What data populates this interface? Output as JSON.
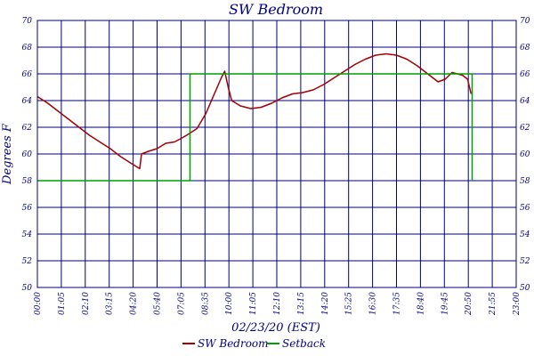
{
  "chart_data": {
    "type": "line",
    "title": "SW Bedroom",
    "xlabel": "02/23/20 (EST)",
    "ylabel": "Degrees F",
    "ylim": [
      50,
      70
    ],
    "yticks": [
      50,
      52,
      54,
      56,
      58,
      60,
      62,
      64,
      66,
      68,
      70
    ],
    "xlim": [
      "00:00",
      "23:00"
    ],
    "xticks": [
      "00:00",
      "01:05",
      "02:10",
      "03:15",
      "04:20",
      "05:40",
      "07:05",
      "08:35",
      "10:00",
      "11:05",
      "12:10",
      "13:15",
      "14:20",
      "15:25",
      "16:30",
      "17:35",
      "18:40",
      "19:45",
      "20:50",
      "21:55",
      "23:00"
    ],
    "grid": true,
    "legend_position": "bottom",
    "colors": {
      "SW Bedroom": "#a00000",
      "Setback": "#00a000",
      "axes": "#000080",
      "grid": "#000080"
    },
    "series": [
      {
        "name": "SW Bedroom",
        "points": [
          [
            "00:00",
            64.3
          ],
          [
            "00:30",
            63.8
          ],
          [
            "01:00",
            63.2
          ],
          [
            "01:30",
            62.6
          ],
          [
            "02:00",
            62.0
          ],
          [
            "02:30",
            61.4
          ],
          [
            "03:00",
            60.9
          ],
          [
            "03:30",
            60.4
          ],
          [
            "04:00",
            59.8
          ],
          [
            "04:30",
            59.3
          ],
          [
            "04:55",
            58.9
          ],
          [
            "05:00",
            60.0
          ],
          [
            "05:20",
            60.2
          ],
          [
            "05:45",
            60.4
          ],
          [
            "06:10",
            60.8
          ],
          [
            "06:35",
            60.9
          ],
          [
            "06:50",
            61.1
          ],
          [
            "07:10",
            61.4
          ],
          [
            "07:40",
            61.9
          ],
          [
            "08:05",
            63.0
          ],
          [
            "08:35",
            64.8
          ],
          [
            "08:50",
            65.7
          ],
          [
            "09:00",
            66.2
          ],
          [
            "09:10",
            65.0
          ],
          [
            "09:20",
            64.0
          ],
          [
            "09:45",
            63.6
          ],
          [
            "10:15",
            63.4
          ],
          [
            "10:45",
            63.5
          ],
          [
            "11:15",
            63.8
          ],
          [
            "11:45",
            64.2
          ],
          [
            "12:15",
            64.5
          ],
          [
            "12:45",
            64.6
          ],
          [
            "13:15",
            64.8
          ],
          [
            "13:45",
            65.2
          ],
          [
            "14:15",
            65.7
          ],
          [
            "14:45",
            66.2
          ],
          [
            "15:15",
            66.7
          ],
          [
            "15:45",
            67.1
          ],
          [
            "16:15",
            67.4
          ],
          [
            "16:45",
            67.5
          ],
          [
            "17:15",
            67.4
          ],
          [
            "17:45",
            67.1
          ],
          [
            "18:15",
            66.6
          ],
          [
            "18:45",
            66.0
          ],
          [
            "19:15",
            65.4
          ],
          [
            "19:35",
            65.6
          ],
          [
            "19:55",
            66.1
          ],
          [
            "20:10",
            66.0
          ],
          [
            "20:25",
            65.9
          ],
          [
            "20:40",
            65.6
          ],
          [
            "20:50",
            64.5
          ]
        ]
      },
      {
        "name": "Setback",
        "points": [
          [
            "00:00",
            58
          ],
          [
            "07:20",
            58
          ],
          [
            "07:20",
            66
          ],
          [
            "20:53",
            66
          ],
          [
            "20:53",
            58
          ]
        ]
      }
    ]
  }
}
